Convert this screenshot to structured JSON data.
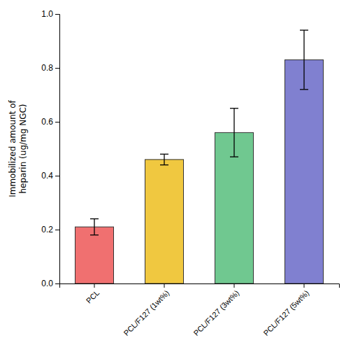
{
  "chart_data": {
    "type": "bar",
    "categories": [
      "PCL",
      "PCL/F127 (1wt%)",
      "PCL/F127 (3wt%)",
      "PCL/F127 (5wt%)"
    ],
    "values": [
      0.21,
      0.46,
      0.56,
      0.83
    ],
    "errors": [
      0.03,
      0.02,
      0.09,
      0.11
    ],
    "colors": [
      "#f07070",
      "#f0c840",
      "#70c890",
      "#8080d0"
    ],
    "ylabel": "Immobilized amount of\nheparin (ug/mg NGC)",
    "ylim": [
      0.0,
      1.0
    ],
    "yticks": [
      {
        "value": 0.0,
        "label": "0.0"
      },
      0.2,
      0.4,
      0.6,
      0.8,
      {
        "value": 1.0,
        "label": "1.0"
      }
    ],
    "grid": false
  }
}
